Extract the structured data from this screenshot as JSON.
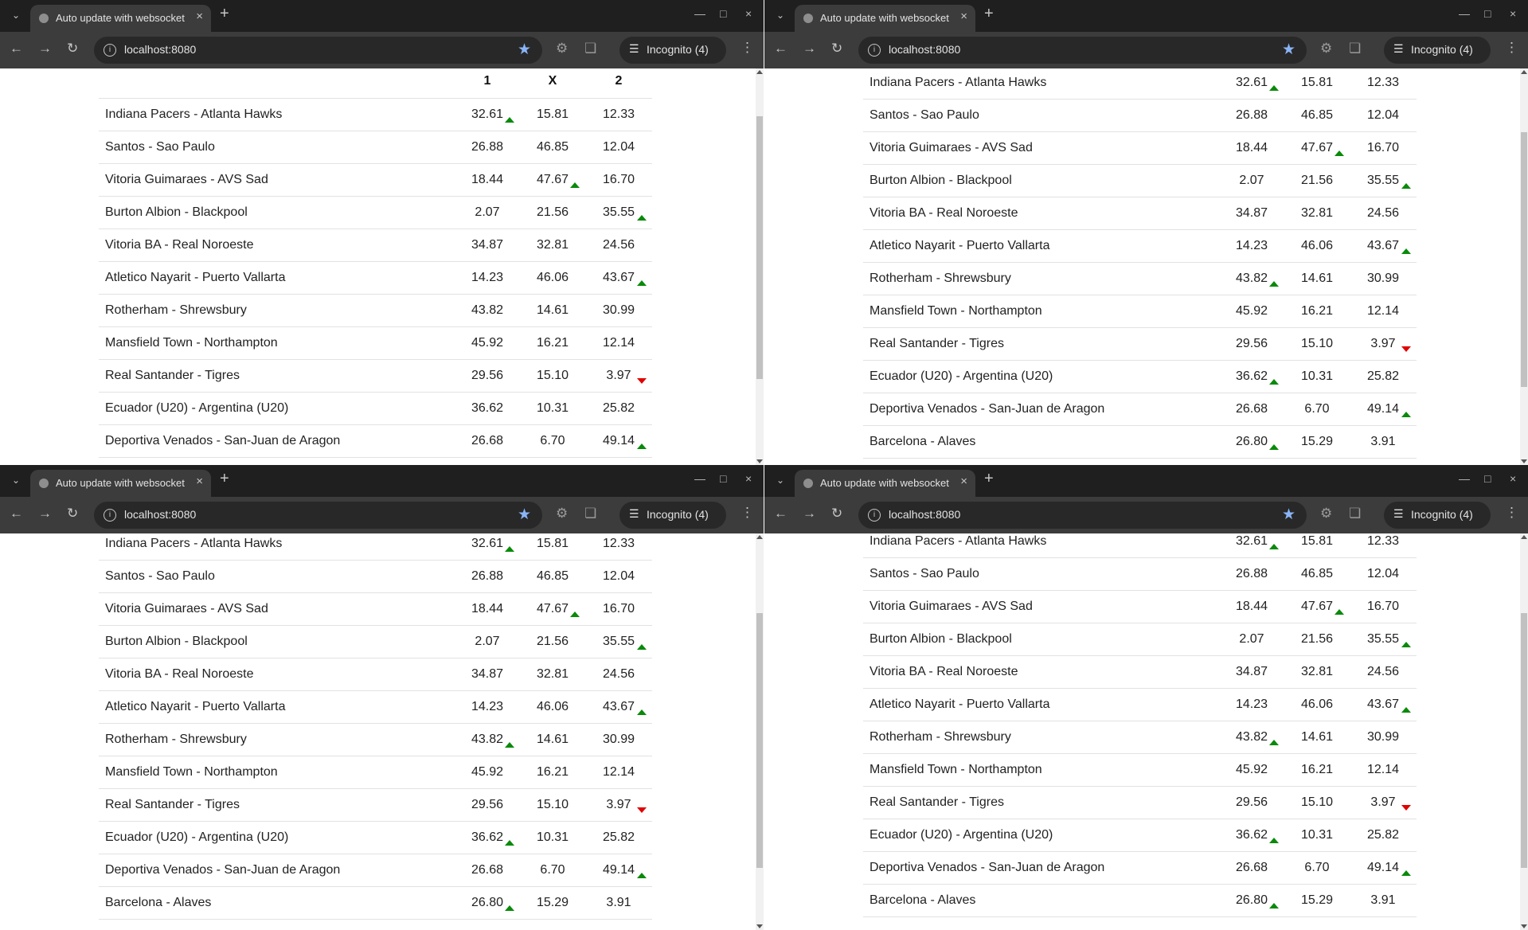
{
  "browser": {
    "tab_title": "Auto update with websocket",
    "url": "localhost:8080",
    "incognito_label": "Incognito (4)"
  },
  "table": {
    "headers": [
      "",
      "1",
      "X",
      "2"
    ],
    "rows": [
      {
        "match": "Indiana Pacers - Atlanta Hawks",
        "o1": "32.61",
        "ox": "15.81",
        "o2": "12.33",
        "t1": "up",
        "tx": "",
        "t2": ""
      },
      {
        "match": "Santos - Sao Paulo",
        "o1": "26.88",
        "ox": "46.85",
        "o2": "12.04",
        "t1": "",
        "tx": "",
        "t2": ""
      },
      {
        "match": "Vitoria Guimaraes - AVS Sad",
        "o1": "18.44",
        "ox": "47.67",
        "o2": "16.70",
        "t1": "",
        "tx": "up",
        "t2": ""
      },
      {
        "match": "Burton Albion - Blackpool",
        "o1": "2.07",
        "ox": "21.56",
        "o2": "35.55",
        "t1": "",
        "tx": "",
        "t2": "up"
      },
      {
        "match": "Vitoria BA - Real Noroeste",
        "o1": "34.87",
        "ox": "32.81",
        "o2": "24.56",
        "t1": "",
        "tx": "",
        "t2": ""
      },
      {
        "match": "Atletico Nayarit - Puerto Vallarta",
        "o1": "14.23",
        "ox": "46.06",
        "o2": "43.67",
        "t1": "",
        "tx": "",
        "t2": "up"
      },
      {
        "match": "Rotherham - Shrewsbury",
        "o1": "43.82",
        "ox": "14.61",
        "o2": "30.99",
        "t1": "up",
        "tx": "",
        "t2": ""
      },
      {
        "match": "Mansfield Town - Northampton",
        "o1": "45.92",
        "ox": "16.21",
        "o2": "12.14",
        "t1": "",
        "tx": "",
        "t2": ""
      },
      {
        "match": "Real Santander - Tigres",
        "o1": "29.56",
        "ox": "15.10",
        "o2": "3.97",
        "t1": "",
        "tx": "",
        "t2": "down"
      },
      {
        "match": "Ecuador (U20) - Argentina (U20)",
        "o1": "36.62",
        "ox": "10.31",
        "o2": "25.82",
        "t1": "up",
        "tx": "",
        "t2": ""
      },
      {
        "match": "Deportiva Venados - San-Juan de Aragon",
        "o1": "26.68",
        "ox": "6.70",
        "o2": "49.14",
        "t1": "",
        "tx": "",
        "t2": "up"
      },
      {
        "match": "Barcelona - Alaves",
        "o1": "26.80",
        "ox": "15.29",
        "o2": "3.91",
        "t1": "up",
        "tx": "",
        "t2": ""
      }
    ],
    "first_window_rows": [
      {
        "match": "Indiana Pacers - Atlanta Hawks",
        "o1": "32.61",
        "ox": "15.81",
        "o2": "12.33",
        "t1": "up",
        "tx": "",
        "t2": ""
      },
      {
        "match": "Santos - Sao Paulo",
        "o1": "26.88",
        "ox": "46.85",
        "o2": "12.04",
        "t1": "",
        "tx": "",
        "t2": ""
      },
      {
        "match": "Vitoria Guimaraes - AVS Sad",
        "o1": "18.44",
        "ox": "47.67",
        "o2": "16.70",
        "t1": "",
        "tx": "up",
        "t2": ""
      },
      {
        "match": "Burton Albion - Blackpool",
        "o1": "2.07",
        "ox": "21.56",
        "o2": "35.55",
        "t1": "",
        "tx": "",
        "t2": "up"
      },
      {
        "match": "Vitoria BA - Real Noroeste",
        "o1": "34.87",
        "ox": "32.81",
        "o2": "24.56",
        "t1": "",
        "tx": "",
        "t2": ""
      },
      {
        "match": "Atletico Nayarit - Puerto Vallarta",
        "o1": "14.23",
        "ox": "46.06",
        "o2": "43.67",
        "t1": "",
        "tx": "",
        "t2": "up"
      },
      {
        "match": "Rotherham - Shrewsbury",
        "o1": "43.82",
        "ox": "14.61",
        "o2": "30.99",
        "t1": "",
        "tx": "",
        "t2": ""
      },
      {
        "match": "Mansfield Town - Northampton",
        "o1": "45.92",
        "ox": "16.21",
        "o2": "12.14",
        "t1": "",
        "tx": "",
        "t2": ""
      },
      {
        "match": "Real Santander - Tigres",
        "o1": "29.56",
        "ox": "15.10",
        "o2": "3.97",
        "t1": "",
        "tx": "",
        "t2": "down"
      },
      {
        "match": "Ecuador (U20) - Argentina (U20)",
        "o1": "36.62",
        "ox": "10.31",
        "o2": "25.82",
        "t1": "",
        "tx": "",
        "t2": ""
      },
      {
        "match": "Deportiva Venados - San-Juan de Aragon",
        "o1": "26.68",
        "ox": "6.70",
        "o2": "49.14",
        "t1": "",
        "tx": "",
        "t2": "up"
      }
    ]
  },
  "colors": {
    "up": "#0a8a0a",
    "down": "#e00000"
  }
}
